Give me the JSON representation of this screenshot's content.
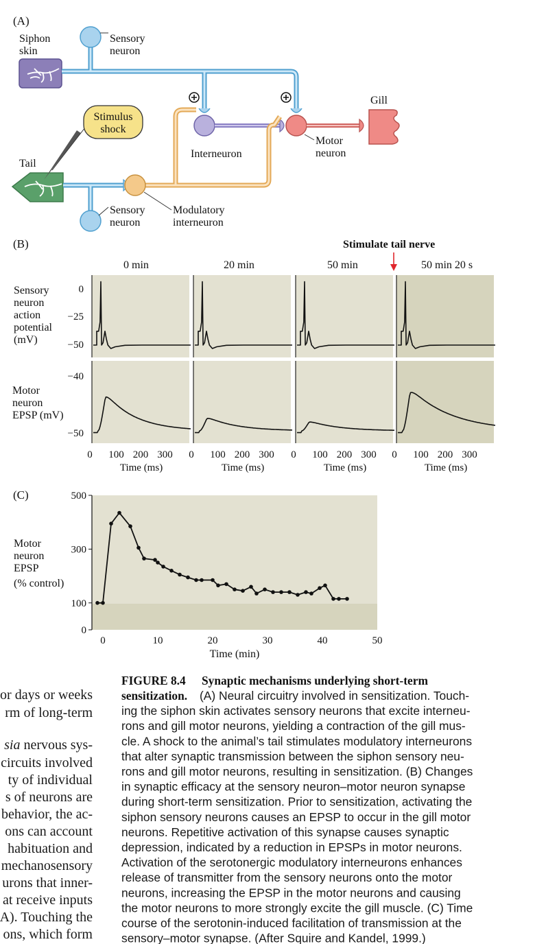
{
  "figure": {
    "panel_a": {
      "label": "(A)",
      "siphon_skin": "Siphon skin",
      "sensory_neuron_top": "Sensory neuron",
      "stimulus_shock": "Stimulus shock",
      "tail": "Tail",
      "interneuron": "Interneuron",
      "motor_neuron": "Motor neuron",
      "gill": "Gill",
      "sensory_neuron_bottom": "Sensory neuron",
      "modulatory_interneuron": "Modulatory interneuron",
      "plus_sign": "+"
    },
    "panel_b": {
      "label": "(B)",
      "stimulate_label": "Stimulate tail nerve",
      "time_titles": [
        "0 min",
        "20 min",
        "50 min",
        "50 min 20 s"
      ],
      "ap_ylabel": "Sensory neuron action potential (mV)",
      "ap_ticks": [
        "0",
        "−25",
        "−50"
      ],
      "epsp_ylabel": "Motor neuron EPSP (mV)",
      "epsp_ticks": [
        "−40",
        "−50"
      ],
      "x_ticks": [
        "0",
        "100",
        "200",
        "300"
      ],
      "x_label": "Time (ms)",
      "epsp_peak_mv": [
        -43.5,
        -47.6,
        -48.3,
        -42.7
      ]
    },
    "panel_c": {
      "label": "(C)",
      "ylabel": "Motor neuron EPSP (% control)",
      "yticks": [
        "500",
        "300",
        "100",
        "0"
      ],
      "xticks": [
        "0",
        "10",
        "20",
        "30",
        "40",
        "50"
      ],
      "xlabel": "Time (min)"
    }
  },
  "chart_data": {
    "type": "line",
    "xlabel": "Time (min)",
    "ylabel": "Motor neuron EPSP (% control)",
    "xlim": [
      -2,
      50
    ],
    "ylim": [
      0,
      500
    ],
    "yticks": [
      0,
      100,
      300,
      500
    ],
    "xticks": [
      0,
      10,
      20,
      30,
      40,
      50
    ],
    "x": [
      -1,
      0,
      1.5,
      3,
      5,
      6.5,
      7.5,
      9.5,
      10,
      11,
      12.5,
      14,
      15.5,
      17,
      18,
      20,
      21,
      22.5,
      24,
      25.5,
      27,
      28,
      29.5,
      31,
      32.5,
      34,
      35.5,
      37,
      38,
      39.5,
      40.5,
      42,
      43,
      44.5
    ],
    "y": [
      100,
      100,
      395,
      435,
      385,
      305,
      265,
      260,
      250,
      235,
      220,
      205,
      195,
      185,
      185,
      185,
      165,
      170,
      150,
      145,
      160,
      135,
      150,
      140,
      140,
      140,
      130,
      140,
      135,
      155,
      165,
      115,
      115,
      115
    ]
  },
  "caption": {
    "title": "FIGURE 8.4",
    "heading_line1": "Synaptic mechanisms underlying short-term",
    "heading_line2": "sensitization.",
    "lines": [
      " (A) Neural circuitry involved in sensitization. Touch-",
      "ing the siphon skin activates sensory neurons that excite interneu-",
      "rons and gill motor neurons, yielding a contraction of the gill mus-",
      "cle. A shock to the animal’s tail stimulates modulatory interneurons",
      "that alter synaptic transmission between the siphon sensory neu-",
      "rons and gill motor neurons, resulting in sensitization. (B) Changes",
      "in synaptic efficacy at the sensory neuron–motor neuron synapse",
      "during short-term sensitization. Prior to sensitization, activating the",
      "siphon sensory neurons causes an EPSP to occur in the gill motor",
      "neurons. Repetitive activation of this synapse causes synaptic",
      "depression, indicated by a reduction in EPSPs in motor neurons.",
      "Activation of the serotonergic modulatory interneurons enhances",
      "release of transmitter from the sensory neurons onto the motor",
      "neurons, increasing the EPSP in the motor neurons and causing",
      "the motor neurons to more strongly excite the gill muscle. (C) Time",
      "course of the serotonin-induced facilitation of transmission at the",
      "sensory–motor synapse. (After Squire and Kandel, 1999.)"
    ]
  },
  "body_text": {
    "lines": [
      "or days or weeks",
      "rm of long-term",
      "",
      "sia nervous sys-",
      "circuits involved",
      "ty of individual",
      "s of neurons are",
      "behavior, the ac-",
      "ons can account",
      "habituation and",
      "mechanosensory",
      "urons that inner-",
      "at receive inputs",
      "A). Touching the",
      "ons, which form"
    ]
  },
  "colors": {
    "sensory_blue": "#a9d3ee",
    "sensory_stroke": "#4f9fcf",
    "interneuron_purple": "#b9b1dd",
    "motor_red": "#ef8a86",
    "modulatory_orange": "#f4c98a",
    "siphon_purple": "#8c7fb8",
    "tail_green": "#5aa06a",
    "panel_bg": "#e3e1d1",
    "panel_bg_dark": "#d6d4bd",
    "caption_blue": "#1f5aa6",
    "arrow_red": "#e0262c"
  }
}
